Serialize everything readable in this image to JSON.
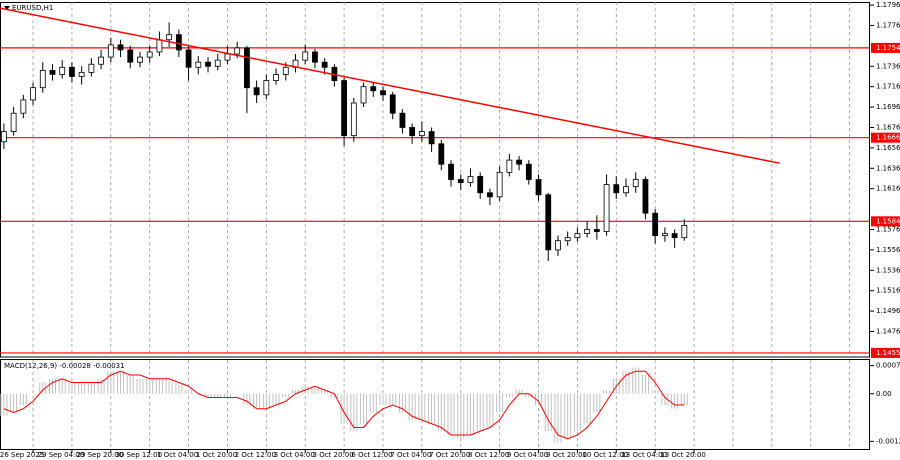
{
  "chart_data": [
    {
      "type": "candlestick",
      "title": "EURUSD,H1",
      "color": "#000000",
      "bull_color": "#ffffff",
      "open": [
        1.1662,
        1.1672,
        1.169,
        1.1703,
        1.1715,
        1.1732,
        1.1728,
        1.1735,
        1.1726,
        1.173,
        1.1738,
        1.1745,
        1.1757,
        1.1752,
        1.174,
        1.1745,
        1.175,
        1.1762,
        1.1767,
        1.1752,
        1.1735,
        1.174,
        1.1736,
        1.1742,
        1.1748,
        1.1754,
        1.1715,
        1.1708,
        1.1722,
        1.1728,
        1.1735,
        1.1742,
        1.175,
        1.174,
        1.1735,
        1.1722,
        1.1668,
        1.17,
        1.1716,
        1.1712,
        1.1708,
        1.169,
        1.1676,
        1.1668,
        1.1672,
        1.166,
        1.164,
        1.1625,
        1.1622,
        1.1628,
        1.1612,
        1.1608,
        1.1632,
        1.1644,
        1.164,
        1.1625,
        1.161,
        1.1556,
        1.1565,
        1.1568,
        1.1572,
        1.1576,
        1.1574,
        1.162,
        1.1612,
        1.1618,
        1.1625,
        1.1592,
        1.157,
        1.1572,
        1.1568
      ],
      "high": [
        1.168,
        1.1696,
        1.1708,
        1.172,
        1.174,
        1.1738,
        1.1742,
        1.174,
        1.1736,
        1.1744,
        1.1752,
        1.1764,
        1.1762,
        1.1756,
        1.175,
        1.1756,
        1.177,
        1.1779,
        1.1772,
        1.1756,
        1.1746,
        1.1745,
        1.1748,
        1.1756,
        1.176,
        1.1756,
        1.1722,
        1.1728,
        1.1734,
        1.174,
        1.1748,
        1.1757,
        1.1753,
        1.1744,
        1.1738,
        1.1725,
        1.1705,
        1.172,
        1.172,
        1.1716,
        1.1711,
        1.1694,
        1.168,
        1.1682,
        1.1676,
        1.1664,
        1.1644,
        1.163,
        1.1636,
        1.1632,
        1.1616,
        1.1638,
        1.165,
        1.1648,
        1.1644,
        1.163,
        1.1612,
        1.157,
        1.1574,
        1.1578,
        1.1584,
        1.159,
        1.163,
        1.1628,
        1.1626,
        1.1632,
        1.1628,
        1.1596,
        1.1578,
        1.1576,
        1.1586
      ],
      "low": [
        1.1655,
        1.1668,
        1.1685,
        1.1698,
        1.171,
        1.1722,
        1.1724,
        1.172,
        1.1718,
        1.1726,
        1.1733,
        1.174,
        1.1745,
        1.1734,
        1.1735,
        1.174,
        1.1746,
        1.1755,
        1.1745,
        1.1722,
        1.1728,
        1.173,
        1.1732,
        1.1738,
        1.1744,
        1.169,
        1.17,
        1.1704,
        1.1718,
        1.1722,
        1.173,
        1.1738,
        1.1734,
        1.1728,
        1.1716,
        1.1658,
        1.1662,
        1.1696,
        1.1706,
        1.1702,
        1.1684,
        1.167,
        1.166,
        1.1662,
        1.1652,
        1.1634,
        1.1618,
        1.1615,
        1.1618,
        1.1606,
        1.16,
        1.1604,
        1.1628,
        1.1634,
        1.162,
        1.1604,
        1.1545,
        1.155,
        1.156,
        1.1564,
        1.1568,
        1.1566,
        1.157,
        1.1606,
        1.1608,
        1.1612,
        1.1586,
        1.1562,
        1.1564,
        1.1558,
        1.1565
      ],
      "close": [
        1.1672,
        1.169,
        1.1703,
        1.1715,
        1.1732,
        1.1728,
        1.1735,
        1.1726,
        1.173,
        1.1738,
        1.1745,
        1.1757,
        1.1752,
        1.174,
        1.1745,
        1.175,
        1.1762,
        1.1767,
        1.1752,
        1.1735,
        1.174,
        1.1736,
        1.1742,
        1.1748,
        1.1754,
        1.1715,
        1.1708,
        1.1722,
        1.1728,
        1.1735,
        1.1742,
        1.175,
        1.174,
        1.1735,
        1.1722,
        1.1668,
        1.17,
        1.1716,
        1.1712,
        1.1708,
        1.169,
        1.1676,
        1.1668,
        1.1672,
        1.166,
        1.164,
        1.1625,
        1.1622,
        1.1628,
        1.1612,
        1.1608,
        1.1632,
        1.1644,
        1.164,
        1.1625,
        1.161,
        1.1556,
        1.1565,
        1.1568,
        1.1572,
        1.1576,
        1.1574,
        1.162,
        1.1612,
        1.1618,
        1.1625,
        1.1592,
        1.157,
        1.1572,
        1.1568,
        1.158
      ],
      "ylim": [
        1.1451,
        1.1799
      ],
      "yticks": [
        1.1796,
        1.1776,
        1.1736,
        1.1716,
        1.1696,
        1.1676,
        1.1656,
        1.1636,
        1.1616,
        1.1576,
        1.1556,
        1.1536,
        1.1516,
        1.1496,
        1.1476
      ],
      "levels": [
        1.1754,
        1.1666,
        1.1584,
        1.1455
      ],
      "level_color": "#ff0000",
      "trendline": {
        "x": [
          -0.4,
          79.8
        ],
        "y": [
          1.1793,
          1.1641
        ],
        "color": "#ff0000"
      }
    },
    {
      "type": "bar",
      "title": "MACD(12,26,9) -0.00028 -0.00031",
      "series": [
        {
          "color": "#c0c0c0",
          "values": [
            -0.0006,
            -0.0005,
            -0.0003,
            0.0,
            0.0003,
            0.0004,
            0.0004,
            0.0003,
            0.0003,
            0.0003,
            0.0004,
            0.0006,
            0.0006,
            0.0005,
            0.0004,
            0.0004,
            0.0004,
            0.0004,
            0.0003,
            0.0001,
            0.0,
            -0.0001,
            -0.0001,
            -0.0001,
            0.0,
            -0.0003,
            -0.0004,
            -0.0004,
            -0.0003,
            -0.0001,
            0.0001,
            0.0002,
            0.0002,
            0.0001,
            -0.0001,
            -0.0008,
            -0.001,
            -0.0008,
            -0.0005,
            -0.0003,
            -0.0003,
            -0.0005,
            -0.0007,
            -0.0007,
            -0.0008,
            -0.001,
            -0.0011,
            -0.0012,
            -0.0011,
            -0.001,
            -0.0009,
            -0.0005,
            -0.0001,
            0.0001,
            -0.0001,
            -0.0003,
            -0.001,
            -0.0013,
            -0.0012,
            -0.001,
            -0.0008,
            -0.0005,
            0.0001,
            0.0004,
            0.0006,
            0.0007,
            0.0005,
            0.0001,
            -0.0003,
            -0.0004,
            -0.0003
          ]
        },
        {
          "color": "#ff0000",
          "values": [
            -0.0004,
            -0.0005,
            -0.0004,
            -0.0002,
            0.0001,
            0.0003,
            0.0004,
            0.0003,
            0.0003,
            0.0003,
            0.0003,
            0.0005,
            0.0006,
            0.0005,
            0.0005,
            0.0004,
            0.0004,
            0.0004,
            0.0003,
            0.0002,
            0.0,
            -0.0001,
            -0.0001,
            -0.0001,
            -0.0001,
            -0.0002,
            -0.0004,
            -0.0004,
            -0.0003,
            -0.0002,
            0.0,
            0.0001,
            0.0002,
            0.0001,
            0.0,
            -0.0005,
            -0.0009,
            -0.0009,
            -0.0006,
            -0.0004,
            -0.0003,
            -0.0004,
            -0.0006,
            -0.0007,
            -0.0008,
            -0.0009,
            -0.0011,
            -0.0011,
            -0.0011,
            -0.001,
            -0.0009,
            -0.0007,
            -0.0003,
            0.0,
            0.0,
            -0.0002,
            -0.0007,
            -0.0011,
            -0.0012,
            -0.0011,
            -0.0009,
            -0.0006,
            -0.0002,
            0.0002,
            0.0005,
            0.0006,
            0.0006,
            0.0003,
            -0.0001,
            -0.0003,
            -0.0003
          ]
        }
      ],
      "ylim": [
        -0.0015,
        0.0009
      ],
      "yticks": [
        0.00075,
        {
          "value": 0,
          "label": "0.00"
        },
        -0.00127
      ],
      "xlim": [
        -0.4,
        89.1
      ],
      "xticks": [
        {
          "value": 3,
          "label": "26 Sep 2025"
        },
        {
          "value": 7,
          "label": "29 Sep 04:00"
        },
        {
          "value": 11,
          "label": "29 Sep 20:00"
        },
        {
          "value": 15,
          "label": "30 Sep 12:00"
        },
        {
          "value": 19,
          "label": "1 Oct 04:00"
        },
        {
          "value": 23,
          "label": "1 Oct 20:00"
        },
        {
          "value": 27,
          "label": "2 Oct 12:00"
        },
        {
          "value": 31,
          "label": "3 Oct 04:00"
        },
        {
          "value": 35,
          "label": "3 Oct 20:00"
        },
        {
          "value": 39,
          "label": "6 Oct 12:00"
        },
        {
          "value": 43,
          "label": "7 Oct 04:00"
        },
        {
          "value": 47,
          "label": "7 Oct 20:00"
        },
        {
          "value": 51,
          "label": "8 Oct 12:00"
        },
        {
          "value": 55,
          "label": "9 Oct 04:00"
        },
        {
          "value": 59,
          "label": "9 Oct 20:00"
        },
        {
          "value": 63,
          "label": "10 Oct 12:00"
        },
        {
          "value": 67,
          "label": "13 Oct 04:00"
        },
        {
          "value": 71,
          "label": "13 Oct 20:00"
        }
      ],
      "xgrid": [
        75,
        79,
        83,
        87
      ]
    }
  ]
}
